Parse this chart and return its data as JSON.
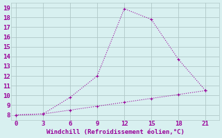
{
  "line1_x": [
    0,
    3,
    6,
    9,
    12,
    15,
    18,
    21
  ],
  "line1_y": [
    8,
    8.1,
    9.8,
    12,
    18.9,
    17.8,
    13.7,
    10.5
  ],
  "line2_x": [
    0,
    3,
    6,
    9,
    12,
    15,
    18,
    21
  ],
  "line2_y": [
    8,
    8.1,
    8.5,
    8.9,
    9.3,
    9.7,
    10.1,
    10.5
  ],
  "line_color": "#990099",
  "background_color": "#d8f0f0",
  "xlabel": "Windchill (Refroidissement éolien,°C)",
  "xlabel_color": "#990099",
  "tick_color": "#990099",
  "grid_color": "#b0c8c8",
  "ylim": [
    7.5,
    19.5
  ],
  "xlim": [
    -0.5,
    22.5
  ],
  "xticks": [
    0,
    3,
    6,
    9,
    12,
    15,
    18,
    21
  ],
  "yticks": [
    8,
    9,
    10,
    11,
    12,
    13,
    14,
    15,
    16,
    17,
    18,
    19
  ],
  "markersize": 3,
  "linewidth": 0.8
}
